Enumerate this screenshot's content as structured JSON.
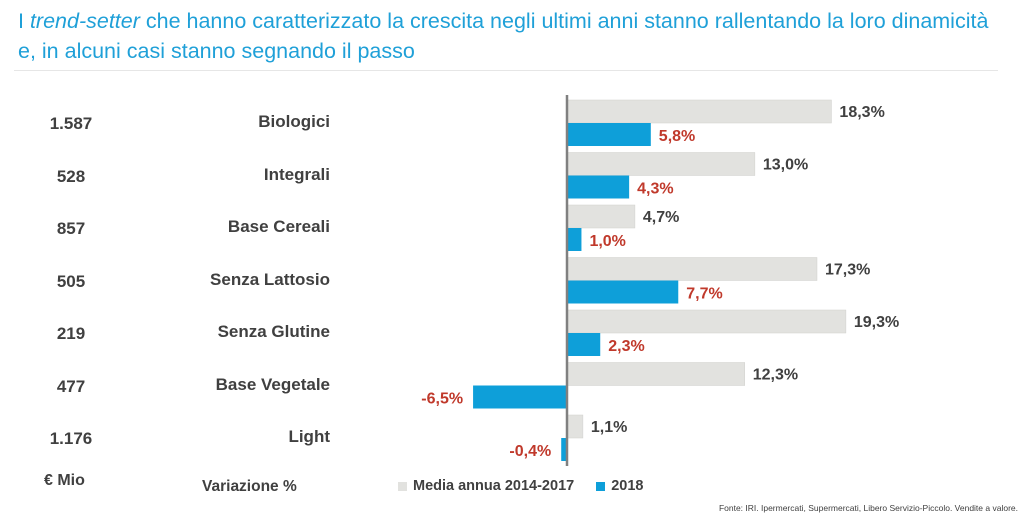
{
  "header": {
    "title_prefix": "I ",
    "title_em": "trend-setter",
    "title_rest": " che hanno caratterizzato la crescita negli ultimi anni stanno rallentando la loro dinamicità e, in alcuni casi stanno segnando il passo"
  },
  "table": {
    "footer_unit": "€ Mio",
    "footer_variation": "Variazione %"
  },
  "legend": {
    "avg_label": "Media annua 2014-2017",
    "y2018_label": "2018"
  },
  "source": "Fonte: IRI. Ipermercati, Supermercati, Libero Servizio-Piccolo. Vendite a valore.",
  "colors": {
    "avg": "#e2e2df",
    "y2018": "#0e9fd9",
    "avg_text": "#404040",
    "y2018_text": "#c0392b",
    "title": "#1fa0d8"
  },
  "chart_data": {
    "type": "bar",
    "orientation": "horizontal",
    "categories": [
      "Biologici",
      "Integrali",
      "Base Cereali",
      "Senza Lattosio",
      "Senza Glutine",
      "Base Vegetale",
      "Light"
    ],
    "sales_mio": [
      "1.587",
      "528",
      "857",
      "505",
      "219",
      "477",
      "1.176"
    ],
    "series": [
      {
        "name": "Media annua 2014-2017",
        "values": [
          18.3,
          13.0,
          4.7,
          17.3,
          19.3,
          12.3,
          1.1
        ],
        "labels": [
          "18,3%",
          "13,0%",
          "4,7%",
          "17,3%",
          "19,3%",
          "12,3%",
          "1,1%"
        ]
      },
      {
        "name": "2018",
        "values": [
          5.8,
          4.3,
          1.0,
          7.7,
          2.3,
          -6.5,
          -0.4
        ],
        "labels": [
          "5,8%",
          "4,3%",
          "1,0%",
          "7,7%",
          "2,3%",
          "-6,5%",
          "-0,4%"
        ]
      }
    ],
    "grid": false,
    "legend_position": "bottom"
  }
}
